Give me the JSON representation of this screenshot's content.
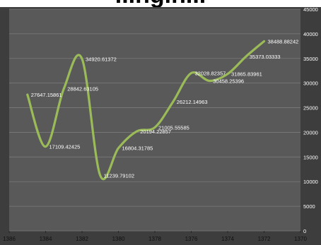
{
  "page_title": "...ngin...",
  "chart_data": {
    "type": "line",
    "smooth": true,
    "title": "",
    "xlabel": "",
    "ylabel": "",
    "x_reversed": true,
    "y_axis_position": "right",
    "xlim": [
      1386,
      1370
    ],
    "ylim": [
      0,
      45000
    ],
    "x_ticks": [
      "1386",
      "1384",
      "1382",
      "1380",
      "1378",
      "1376",
      "1374",
      "1372",
      "1370"
    ],
    "y_ticks": [
      "0",
      "5000",
      "10000",
      "15000",
      "20000",
      "25000",
      "30000",
      "35000",
      "40000",
      "45000"
    ],
    "grid": true,
    "legend": "none",
    "colors": {
      "plot_bg": "#595959",
      "frame": "#3d3d3d",
      "grid": "#7a7a7a",
      "line": "#9bbb59",
      "label": "#ffffff"
    },
    "series": [
      {
        "x": [
          1385,
          1384,
          1383,
          1382,
          1381,
          1380,
          1379,
          1378,
          1377,
          1376,
          1375,
          1374,
          1373,
          1372
        ],
        "values": [
          27647.15861,
          17109.42425,
          28842.63105,
          34920.61372,
          11239.79102,
          16804.31785,
          20194.22857,
          21005.55585,
          26212.14963,
          32028.82357,
          30458.25396,
          31865.83961,
          35373.03333,
          38488.88242
        ],
        "labels": [
          "27647.15861",
          "17109.42425",
          "28842.63105",
          "34920.61372",
          "11239.79102",
          "16804.31785",
          "20194.22857",
          "21005.55585",
          "26212.14963",
          "32028.82357",
          "30458.25396",
          "31865.83961",
          "35373.03333",
          "38488.88242"
        ]
      }
    ]
  }
}
